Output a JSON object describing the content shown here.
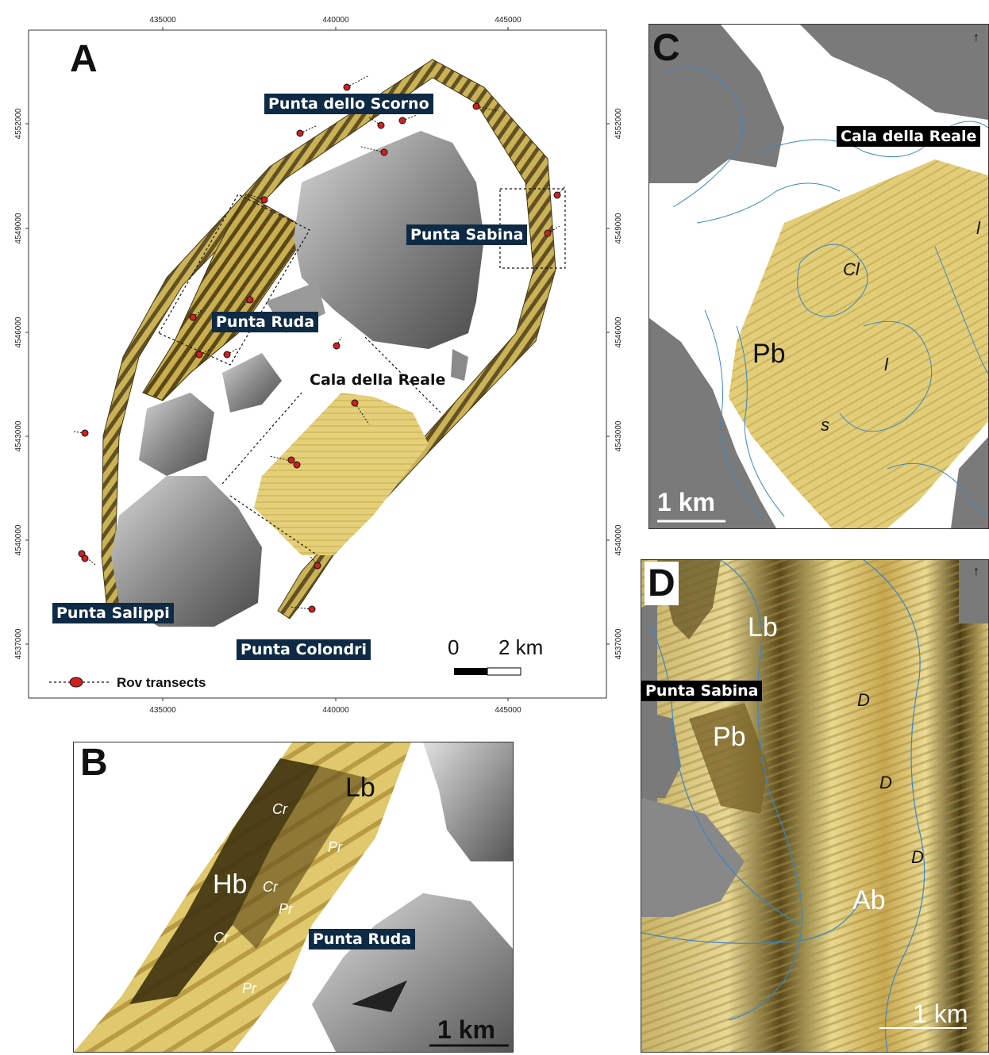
{
  "panels": {
    "a": {
      "label": "A",
      "x_ticks": [
        "435000",
        "440000",
        "445000"
      ],
      "y_ticks": [
        "4552000",
        "4549000",
        "4546000",
        "4543000",
        "4540000",
        "4537000"
      ],
      "places": {
        "scorno": "Punta dello Scorno",
        "sabina": "Punta Sabina",
        "ruda": "Punta Ruda",
        "cala": "Cala della Reale",
        "salippi": "Punta Salippi",
        "colondri": "Punta Colondri"
      },
      "legend": "Rov transects",
      "scale": {
        "zero": "0",
        "length": "2 km"
      }
    },
    "b": {
      "label": "B",
      "place": "Punta Ruda",
      "units": {
        "lb": "Lb",
        "hb": "Hb",
        "cr": "Cr",
        "pr": "Pr"
      },
      "scale": "1 km"
    },
    "c": {
      "label": "C",
      "place": "Cala della Reale",
      "units": {
        "pb": "Pb",
        "cl": "Cl",
        "l": "l",
        "s": "s"
      },
      "scale": "1 km"
    },
    "d": {
      "label": "D",
      "place": "Punta Sabina",
      "units": {
        "lb": "Lb",
        "pb": "Pb",
        "ab": "Ab",
        "d": "D"
      },
      "scale": "1 km"
    }
  },
  "colors": {
    "navy_label": "#0e2a44",
    "sonar_light": "#e6d47a",
    "sonar_dark": "#4a3d12",
    "land_gray": "#7a7a7a",
    "isobath": "#3a86c8",
    "rov_marker": "#d11f1f"
  }
}
